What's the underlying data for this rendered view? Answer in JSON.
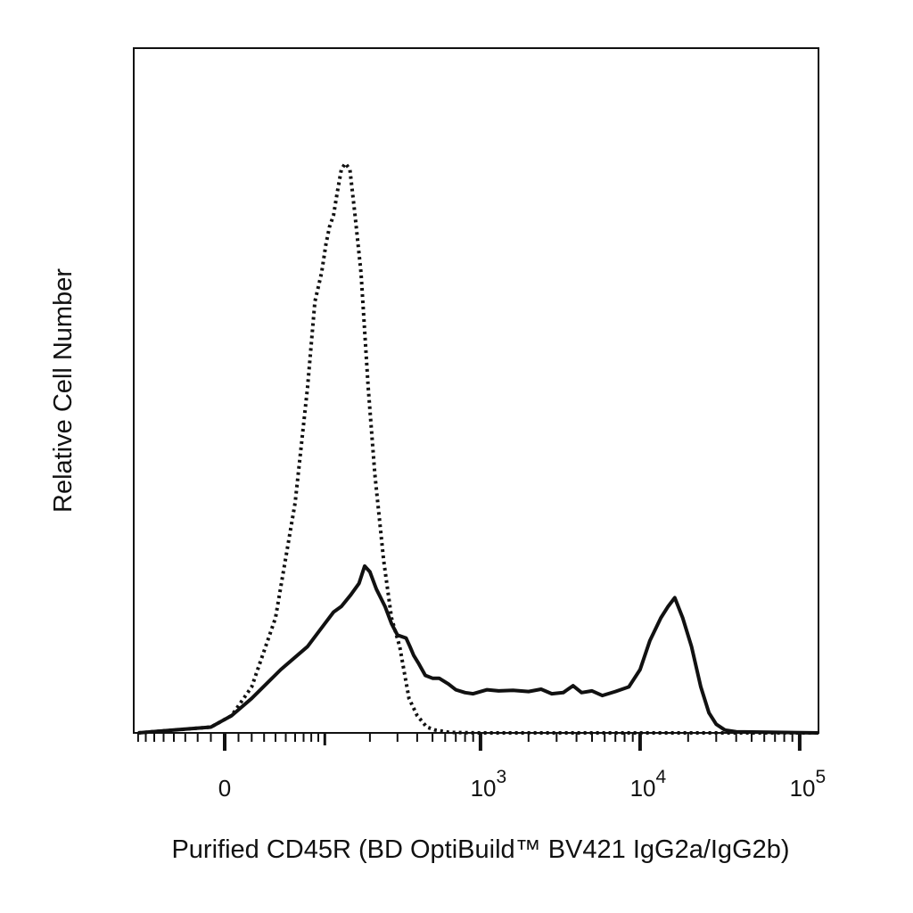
{
  "chart_data": {
    "type": "line",
    "title": "",
    "xlabel": "Purified CD45R (BD OptiBuild™ BV421 IgG2a/IgG2b)",
    "ylabel": "Relative Cell Number",
    "x_scale": "biexponential",
    "xlim": [
      -200,
      200000
    ],
    "ylim": [
      0,
      1
    ],
    "grid": false,
    "legend": "none",
    "x_ticks": [
      {
        "value": 0,
        "base": "0",
        "exp": ""
      },
      {
        "value": 1000,
        "base": "10",
        "exp": "3"
      },
      {
        "value": 10000,
        "base": "10",
        "exp": "4"
      },
      {
        "value": 100000,
        "base": "10",
        "exp": "5"
      }
    ],
    "series": [
      {
        "style": "dotted",
        "color": "#111111",
        "points": [
          [
            -80,
            0
          ],
          [
            -40,
            0.005
          ],
          [
            -10,
            0.01
          ],
          [
            5,
            0.03
          ],
          [
            20,
            0.08
          ],
          [
            40,
            0.2
          ],
          [
            60,
            0.4
          ],
          [
            75,
            0.6
          ],
          [
            85,
            0.75
          ],
          [
            95,
            0.8
          ],
          [
            102,
            0.85
          ],
          [
            108,
            0.88
          ],
          [
            115,
            0.9
          ],
          [
            122,
            0.94
          ],
          [
            130,
            0.98
          ],
          [
            138,
            0.99
          ],
          [
            148,
            0.98
          ],
          [
            160,
            0.9
          ],
          [
            175,
            0.8
          ],
          [
            195,
            0.6
          ],
          [
            215,
            0.45
          ],
          [
            245,
            0.3
          ],
          [
            275,
            0.2
          ],
          [
            310,
            0.15
          ],
          [
            355,
            0.06
          ],
          [
            400,
            0.03
          ],
          [
            460,
            0.01
          ],
          [
            520,
            0.005
          ],
          [
            640,
            0.001
          ],
          [
            1000,
            0
          ],
          [
            3000,
            0
          ],
          [
            10000,
            0
          ],
          [
            50000,
            0
          ],
          [
            200000,
            0
          ]
        ]
      },
      {
        "style": "solid",
        "color": "#111111",
        "points": [
          [
            -80,
            0
          ],
          [
            -40,
            0.005
          ],
          [
            -10,
            0.01
          ],
          [
            5,
            0.03
          ],
          [
            20,
            0.06
          ],
          [
            45,
            0.11
          ],
          [
            75,
            0.15
          ],
          [
            100,
            0.19
          ],
          [
            115,
            0.21
          ],
          [
            130,
            0.22
          ],
          [
            150,
            0.24
          ],
          [
            170,
            0.26
          ],
          [
            185,
            0.29
          ],
          [
            200,
            0.28
          ],
          [
            220,
            0.25
          ],
          [
            250,
            0.22
          ],
          [
            275,
            0.19
          ],
          [
            300,
            0.17
          ],
          [
            340,
            0.165
          ],
          [
            360,
            0.15
          ],
          [
            380,
            0.135
          ],
          [
            410,
            0.12
          ],
          [
            450,
            0.1
          ],
          [
            500,
            0.095
          ],
          [
            550,
            0.095
          ],
          [
            630,
            0.085
          ],
          [
            700,
            0.075
          ],
          [
            800,
            0.07
          ],
          [
            900,
            0.068
          ],
          [
            1100,
            0.075
          ],
          [
            1300,
            0.073
          ],
          [
            1600,
            0.074
          ],
          [
            2000,
            0.072
          ],
          [
            2400,
            0.076
          ],
          [
            2800,
            0.068
          ],
          [
            3300,
            0.07
          ],
          [
            3800,
            0.082
          ],
          [
            4300,
            0.07
          ],
          [
            5000,
            0.073
          ],
          [
            5800,
            0.065
          ],
          [
            7000,
            0.072
          ],
          [
            8500,
            0.08
          ],
          [
            10000,
            0.11
          ],
          [
            11500,
            0.16
          ],
          [
            13500,
            0.2
          ],
          [
            15000,
            0.22
          ],
          [
            16500,
            0.235
          ],
          [
            18500,
            0.2
          ],
          [
            21000,
            0.15
          ],
          [
            24000,
            0.08
          ],
          [
            27000,
            0.035
          ],
          [
            30000,
            0.015
          ],
          [
            34000,
            0.005
          ],
          [
            40000,
            0.002
          ],
          [
            200000,
            0
          ]
        ]
      }
    ]
  }
}
